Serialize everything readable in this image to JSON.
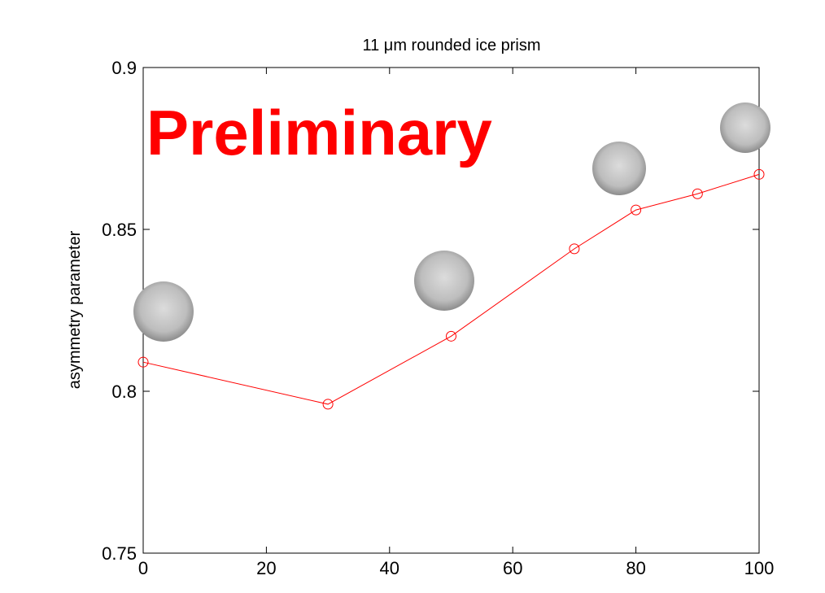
{
  "chart_data": {
    "type": "line",
    "title": "11 μm rounded ice prism",
    "y_label": "asymmetry parameter",
    "annotation": "Preliminary",
    "x": [
      0,
      30,
      50,
      70,
      80,
      90,
      100
    ],
    "series": [
      {
        "color": "#ff0000",
        "values": [
          0.809,
          0.796,
          0.817,
          0.844,
          0.856,
          0.861,
          0.867
        ]
      }
    ],
    "xlim": [
      0,
      100
    ],
    "xticks": [
      0,
      20,
      40,
      60,
      80,
      100
    ],
    "ylim": [
      0.75,
      0.9
    ],
    "yticks": [
      0.75,
      0.8,
      0.85,
      0.9
    ],
    "grid": false
  }
}
